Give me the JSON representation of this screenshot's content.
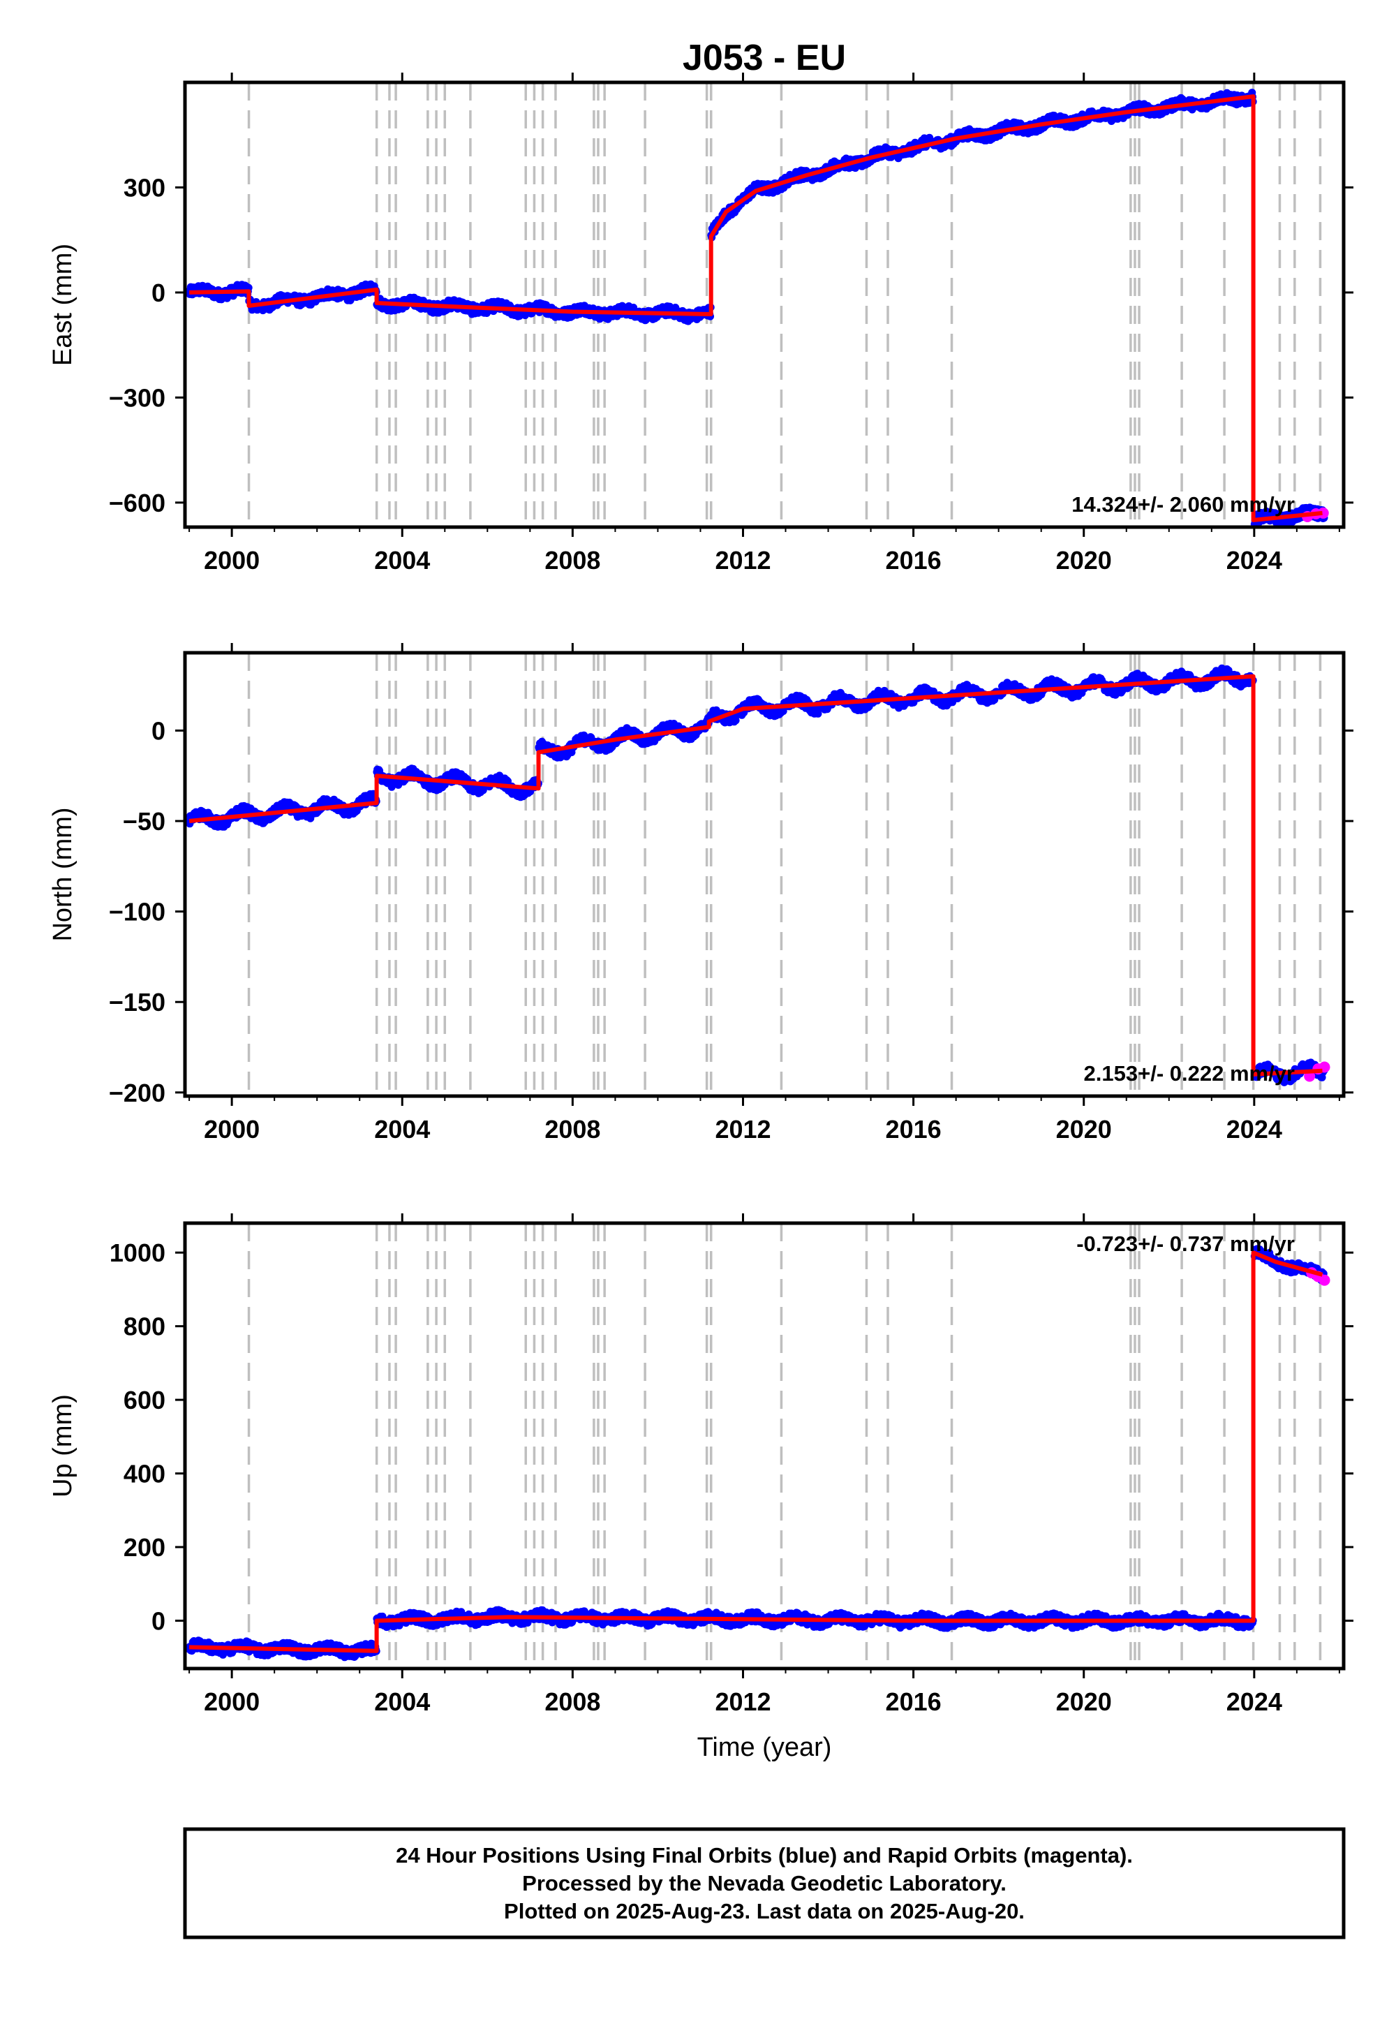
{
  "title": "J053 - EU",
  "footer": {
    "lines": [
      "24 Hour Positions Using Final Orbits (blue) and Rapid Orbits (magenta).",
      "Processed by the Nevada Geodetic Laboratory.",
      "Plotted on 2025-Aug-23. Last data on 2025-Aug-20."
    ]
  },
  "colors": {
    "final_orbits": "#0000ff",
    "rapid_orbits": "#ff00ff",
    "model": "#ff0000",
    "event_lines": "#bfbfbf",
    "frame": "#000000"
  },
  "chart_data": [
    {
      "type": "scatter",
      "component": "east",
      "ylabel": "East (mm)",
      "xlabel": "",
      "xlim": [
        1998.9,
        2026.1
      ],
      "ylim": [
        -670,
        600
      ],
      "x_ticks": [
        2000,
        2004,
        2008,
        2012,
        2016,
        2020,
        2024
      ],
      "x_tick_labels": [
        "2000",
        "2004",
        "2008",
        "2012",
        "2016",
        "2020",
        "2024"
      ],
      "y_ticks": [
        -600,
        -300,
        0,
        300
      ],
      "y_tick_labels": [
        "−600",
        "−300",
        "0",
        "300"
      ],
      "rate_label": "14.324+/- 2.060 mm/yr",
      "model": [
        [
          1999.0,
          0
        ],
        [
          2000.4,
          3
        ],
        [
          2000.4,
          -38
        ],
        [
          2003.4,
          8
        ],
        [
          2003.4,
          -30
        ],
        [
          2005.5,
          -42
        ],
        [
          2008.0,
          -55
        ],
        [
          2011.25,
          -62
        ],
        [
          2011.25,
          160
        ],
        [
          2011.6,
          230
        ],
        [
          2012.3,
          290
        ],
        [
          2013.5,
          335
        ],
        [
          2015.0,
          385
        ],
        [
          2017.0,
          440
        ],
        [
          2019.0,
          480
        ],
        [
          2021.0,
          515
        ],
        [
          2023.98,
          560
        ],
        [
          2023.98,
          -650
        ],
        [
          2025.6,
          -630
        ]
      ],
      "rapid": [
        [
          2025.25,
          -640
        ],
        [
          2025.45,
          -632
        ],
        [
          2025.62,
          -630
        ]
      ],
      "events": [
        2000.4,
        2003.4,
        2003.7,
        2003.85,
        2004.6,
        2004.8,
        2005.0,
        2005.6,
        2006.9,
        2007.1,
        2007.3,
        2007.6,
        2008.5,
        2008.6,
        2008.75,
        2009.7,
        2011.15,
        2011.25,
        2012.9,
        2014.9,
        2015.4,
        2016.9,
        2021.1,
        2021.2,
        2021.3,
        2022.3,
        2023.3,
        2023.98,
        2024.6,
        2024.95,
        2025.55
      ]
    },
    {
      "type": "scatter",
      "component": "north",
      "ylabel": "North (mm)",
      "xlabel": "",
      "xlim": [
        1998.9,
        2026.1
      ],
      "ylim": [
        -202,
        43
      ],
      "x_ticks": [
        2000,
        2004,
        2008,
        2012,
        2016,
        2020,
        2024
      ],
      "x_tick_labels": [
        "2000",
        "2004",
        "2008",
        "2012",
        "2016",
        "2020",
        "2024"
      ],
      "y_ticks": [
        -200,
        -150,
        -100,
        -50,
        0
      ],
      "y_tick_labels": [
        "−200",
        "−150",
        "−100",
        "−50",
        "0"
      ],
      "rate_label": "2.153+/- 0.222 mm/yr",
      "model": [
        [
          1999.0,
          -50
        ],
        [
          2003.4,
          -40
        ],
        [
          2003.4,
          -25
        ],
        [
          2007.2,
          -32
        ],
        [
          2007.2,
          -12
        ],
        [
          2009.0,
          -5
        ],
        [
          2011.2,
          2
        ],
        [
          2011.2,
          5
        ],
        [
          2012.0,
          12
        ],
        [
          2016.0,
          18
        ],
        [
          2020.0,
          24
        ],
        [
          2023.98,
          30
        ],
        [
          2023.98,
          -190
        ],
        [
          2025.6,
          -188
        ]
      ],
      "rapid": [
        [
          2025.3,
          -191
        ],
        [
          2025.5,
          -187
        ],
        [
          2025.65,
          -186
        ]
      ],
      "events": [
        2000.4,
        2003.4,
        2003.7,
        2003.85,
        2004.6,
        2004.8,
        2005.0,
        2005.6,
        2006.9,
        2007.1,
        2007.3,
        2007.6,
        2008.5,
        2008.6,
        2008.75,
        2009.7,
        2011.15,
        2011.25,
        2012.9,
        2014.9,
        2015.4,
        2016.9,
        2021.1,
        2021.2,
        2021.3,
        2022.3,
        2023.3,
        2023.98,
        2024.6,
        2024.95,
        2025.55
      ]
    },
    {
      "type": "scatter",
      "component": "up",
      "ylabel": "Up (mm)",
      "xlabel": "Time (year)",
      "xlim": [
        1998.9,
        2026.1
      ],
      "ylim": [
        -130,
        1080
      ],
      "x_ticks": [
        2000,
        2004,
        2008,
        2012,
        2016,
        2020,
        2024
      ],
      "x_tick_labels": [
        "2000",
        "2004",
        "2008",
        "2012",
        "2016",
        "2020",
        "2024"
      ],
      "y_ticks": [
        0,
        200,
        400,
        600,
        800,
        1000
      ],
      "y_tick_labels": [
        "0",
        "200",
        "400",
        "600",
        "800",
        "1000"
      ],
      "rate_label": "-0.723+/- 0.737 mm/yr",
      "model": [
        [
          1999.0,
          -72
        ],
        [
          2003.4,
          -82
        ],
        [
          2003.4,
          0
        ],
        [
          2006.5,
          10
        ],
        [
          2011.0,
          5
        ],
        [
          2016.0,
          0
        ],
        [
          2023.98,
          0
        ],
        [
          2023.98,
          1000
        ],
        [
          2024.5,
          975
        ],
        [
          2025.6,
          940
        ]
      ],
      "rapid": [
        [
          2025.35,
          945
        ],
        [
          2025.5,
          935
        ],
        [
          2025.65,
          925
        ]
      ],
      "events": [
        2000.4,
        2003.4,
        2003.7,
        2003.85,
        2004.6,
        2004.8,
        2005.0,
        2005.6,
        2006.9,
        2007.1,
        2007.3,
        2007.6,
        2008.5,
        2008.6,
        2008.75,
        2009.7,
        2011.15,
        2011.25,
        2012.9,
        2014.9,
        2015.4,
        2016.9,
        2021.1,
        2021.2,
        2021.3,
        2022.3,
        2023.3,
        2023.98,
        2024.6,
        2024.95,
        2025.55
      ]
    }
  ]
}
